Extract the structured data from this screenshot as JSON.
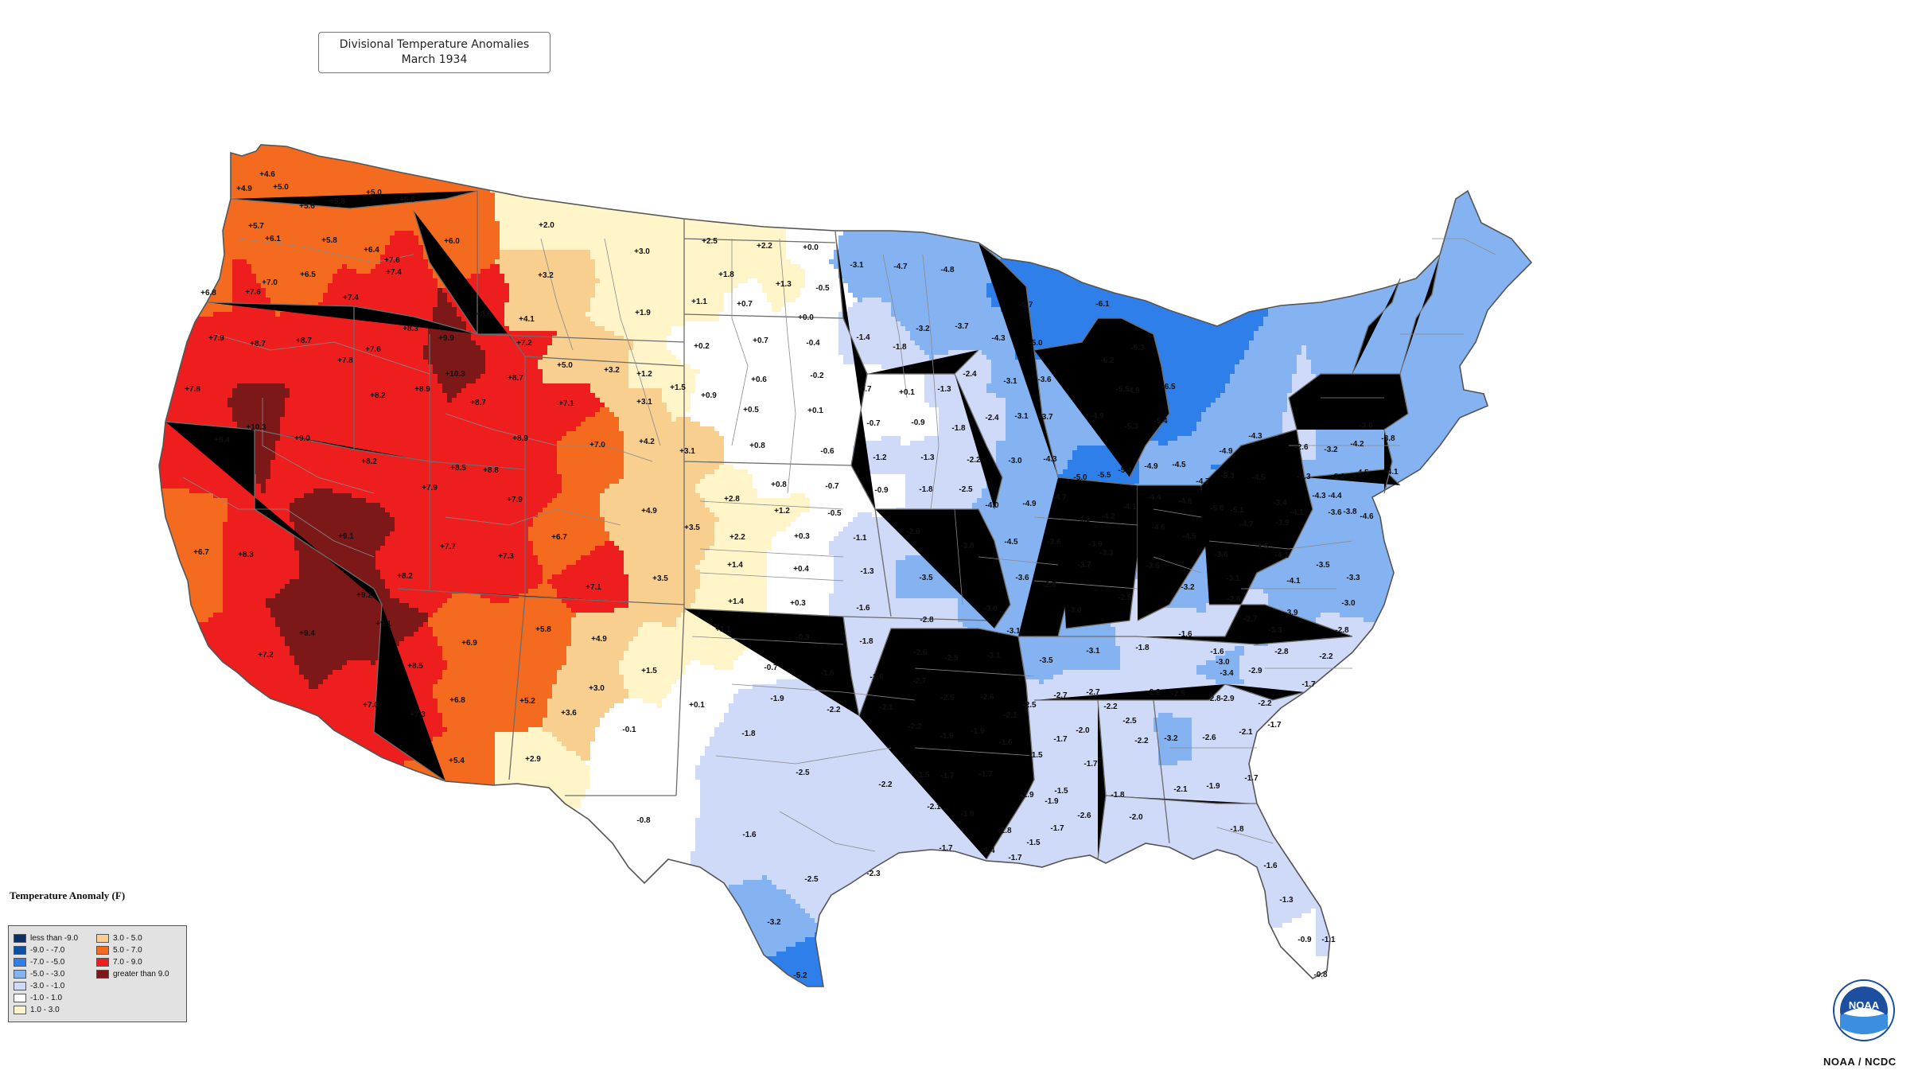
{
  "title": {
    "line1": "Divisional Temperature Anomalies",
    "line2": "March 1934"
  },
  "legend": {
    "title": "Temperature Anomaly (F)",
    "items": [
      {
        "label": "less than -9.0",
        "color": "#08306b"
      },
      {
        "label": "-9.0 - -7.0",
        "color": "#0d4fa3"
      },
      {
        "label": "-7.0 - -5.0",
        "color": "#2f7fea"
      },
      {
        "label": "-5.0 - -3.0",
        "color": "#85b3f2"
      },
      {
        "label": "-3.0 - -1.0",
        "color": "#cfd9f8"
      },
      {
        "label": "-1.0 - 1.0",
        "color": "#ffffff"
      },
      {
        "label": "1.0 - 3.0",
        "color": "#fff5c8"
      },
      {
        "label": "3.0 - 5.0",
        "color": "#f8cf8f"
      },
      {
        "label": "5.0 - 7.0",
        "color": "#f46a1e"
      },
      {
        "label": "7.0 - 9.0",
        "color": "#ee1e1e"
      },
      {
        "label": "greater than 9.0",
        "color": "#7d1818"
      }
    ]
  },
  "credit": "NOAA / NCDC",
  "logo_text": "NOAA",
  "anomalies": [
    [
      "+4.9",
      307,
      236,
      8
    ],
    [
      "+4.6",
      336,
      218,
      8
    ],
    [
      "+5.0",
      353,
      234,
      8
    ],
    [
      "+5.7",
      322,
      283,
      8
    ],
    [
      "+5.6",
      386,
      258,
      8
    ],
    [
      "+5.8",
      424,
      252,
      8
    ],
    [
      "+5.0",
      470,
      241,
      8
    ],
    [
      "+5.5",
      512,
      250,
      8
    ],
    [
      "+6.1",
      343,
      299,
      8
    ],
    [
      "+5.8",
      414,
      301,
      8
    ],
    [
      "+6.4",
      467,
      313,
      8
    ],
    [
      "+6.0",
      568,
      302,
      8
    ],
    [
      "+2.0",
      687,
      282,
      6
    ],
    [
      "+3.0",
      807,
      315,
      6
    ],
    [
      "+2.5",
      892,
      302,
      6
    ],
    [
      "+2.2",
      961,
      308,
      6
    ],
    [
      "+0.0",
      1019,
      310,
      5
    ],
    [
      "+7.6",
      493,
      326,
      9
    ],
    [
      "+7.4",
      495,
      341,
      9
    ],
    [
      "+6.5",
      387,
      344,
      8
    ],
    [
      "+7.0",
      339,
      354,
      8
    ],
    [
      "+7.6",
      318,
      366,
      9
    ],
    [
      "+6.8",
      262,
      367,
      8
    ],
    [
      "+7.4",
      441,
      373,
      9
    ],
    [
      "+3.2",
      686,
      345,
      7
    ],
    [
      "+1.8",
      913,
      344,
      6
    ],
    [
      "+1.3",
      985,
      356,
      6
    ],
    [
      "-0.5",
      1034,
      361,
      5
    ],
    [
      "-3.1",
      1077,
      332,
      3
    ],
    [
      "-4.7",
      1132,
      334,
      3
    ],
    [
      "-4.8",
      1191,
      338,
      3
    ],
    [
      "+1.1",
      879,
      378,
      6
    ],
    [
      "+0.7",
      936,
      381,
      5
    ],
    [
      "+1.9",
      808,
      392,
      6
    ],
    [
      "+4.1",
      662,
      400,
      7
    ],
    [
      "+8.6",
      608,
      394,
      9
    ],
    [
      "+0.0",
      1013,
      398,
      5
    ],
    [
      "+7.9",
      272,
      424,
      9
    ],
    [
      "+8.7",
      324,
      431,
      9
    ],
    [
      "+8.7",
      382,
      427,
      9
    ],
    [
      "+8.3",
      516,
      412,
      9
    ],
    [
      "+9.9",
      561,
      424,
      10
    ],
    [
      "+7.2",
      659,
      430,
      9
    ],
    [
      "+0.2",
      882,
      434,
      5
    ],
    [
      "+0.7",
      956,
      427,
      5
    ],
    [
      "-0.4",
      1022,
      430,
      5
    ],
    [
      "-1.4",
      1085,
      423,
      4
    ],
    [
      "-1.8",
      1131,
      435,
      4
    ],
    [
      "-3.2",
      1160,
      412,
      3
    ],
    [
      "-3.7",
      1209,
      409,
      3
    ],
    [
      "-4.3",
      1255,
      424,
      3
    ],
    [
      "-5.7",
      1290,
      382,
      2
    ],
    [
      "-6.1",
      1386,
      381,
      2
    ],
    [
      "-5.0",
      1302,
      430,
      2
    ],
    [
      "+7.8",
      434,
      452,
      9
    ],
    [
      "+7.6",
      469,
      438,
      9
    ],
    [
      "+10.3",
      572,
      469,
      10
    ],
    [
      "+8.7",
      648,
      474,
      9
    ],
    [
      "+5.0",
      710,
      458,
      7
    ],
    [
      "+3.2",
      769,
      464,
      7
    ],
    [
      "+1.2",
      810,
      469,
      6
    ],
    [
      "+0.6",
      954,
      476,
      5
    ],
    [
      "-0.2",
      1027,
      471,
      5
    ],
    [
      "-2.4",
      1219,
      469,
      4
    ],
    [
      "-3.1",
      1270,
      478,
      3
    ],
    [
      "-3.6",
      1313,
      476,
      3
    ],
    [
      "-6.2",
      1392,
      452,
      2
    ],
    [
      "-6.3",
      1430,
      436,
      2
    ],
    [
      "+7.8",
      242,
      488,
      9
    ],
    [
      "+8.2",
      475,
      496,
      9
    ],
    [
      "+8.9",
      531,
      488,
      9
    ],
    [
      "+8.7",
      601,
      505,
      9
    ],
    [
      "+7.1",
      712,
      506,
      9
    ],
    [
      "+3.1",
      810,
      504,
      7
    ],
    [
      "+1.5",
      852,
      486,
      6
    ],
    [
      "+0.9",
      891,
      496,
      5
    ],
    [
      "+0.5",
      944,
      514,
      5
    ],
    [
      "+0.1",
      1025,
      515,
      5
    ],
    [
      "-0.7",
      1087,
      488,
      5
    ],
    [
      "+0.1",
      1140,
      492,
      5
    ],
    [
      "-1.3",
      1187,
      488,
      4
    ],
    [
      "-4.9",
      1424,
      490,
      3
    ],
    [
      "-5.5",
      1411,
      488,
      2
    ],
    [
      "-6.5",
      1469,
      485,
      2
    ],
    [
      "+10.3",
      322,
      536,
      10
    ],
    [
      "+8.4",
      279,
      552,
      9
    ],
    [
      "+9.0",
      380,
      550,
      9
    ],
    [
      "+8.9",
      654,
      550,
      9
    ],
    [
      "+7.0",
      751,
      558,
      8
    ],
    [
      "+4.2",
      813,
      554,
      7
    ],
    [
      "+3.1",
      864,
      566,
      7
    ],
    [
      "+0.8",
      952,
      559,
      5
    ],
    [
      "-0.6",
      1040,
      566,
      5
    ],
    [
      "-0.7",
      1098,
      531,
      5
    ],
    [
      "-0.9",
      1154,
      530,
      5
    ],
    [
      "-1.8",
      1205,
      537,
      4
    ],
    [
      "-2.4",
      1247,
      524,
      4
    ],
    [
      "-3.1",
      1284,
      522,
      3
    ],
    [
      "-3.7",
      1315,
      523,
      3
    ],
    [
      "-4.9",
      1379,
      522,
      3
    ],
    [
      "-5.3",
      1422,
      535,
      2
    ],
    [
      "-5.4",
      1459,
      528,
      2
    ],
    [
      "+8.2",
      464,
      579,
      9
    ],
    [
      "+8.5",
      576,
      587,
      9
    ],
    [
      "+8.8",
      617,
      590,
      9
    ],
    [
      "-1.2",
      1106,
      574,
      4
    ],
    [
      "-1.3",
      1166,
      574,
      4
    ],
    [
      "-2.2",
      1224,
      577,
      4
    ],
    [
      "-3.0",
      1276,
      578,
      3
    ],
    [
      "-4.3",
      1320,
      576,
      3
    ],
    [
      "-5.0",
      1358,
      599,
      2
    ],
    [
      "-5.5",
      1388,
      596,
      2
    ],
    [
      "-5.4",
      1414,
      590,
      2
    ],
    [
      "-4.9",
      1447,
      585,
      3
    ],
    [
      "-4.5",
      1482,
      583,
      3
    ],
    [
      "-4.9",
      1541,
      566,
      3
    ],
    [
      "-5.3",
      1543,
      597,
      2
    ],
    [
      "-4.3",
      1578,
      547,
      3
    ],
    [
      "-2.6",
      1636,
      561,
      4
    ],
    [
      "-3.2",
      1673,
      564,
      3
    ],
    [
      "-4.2",
      1706,
      557,
      3
    ],
    [
      "-3.8",
      1745,
      550,
      3
    ],
    [
      "-3.0",
      1717,
      534,
      3
    ],
    [
      "+7.9",
      540,
      612,
      9
    ],
    [
      "+7.9",
      647,
      627,
      9
    ],
    [
      "+0.8",
      979,
      608,
      5
    ],
    [
      "-0.7",
      1046,
      610,
      5
    ],
    [
      "-0.9",
      1108,
      615,
      5
    ],
    [
      "-1.8",
      1164,
      614,
      4
    ],
    [
      "-2.5",
      1214,
      614,
      4
    ],
    [
      "-4.7",
      1332,
      624,
      3
    ],
    [
      "-4.1",
      1420,
      636,
      3
    ],
    [
      "-4.4",
      1451,
      624,
      3
    ],
    [
      "-4.6",
      1490,
      629,
      3
    ],
    [
      "-4.7",
      1512,
      604,
      3
    ],
    [
      "-5.0",
      1530,
      638,
      2
    ],
    [
      "-4.5",
      1582,
      599,
      3
    ],
    [
      "-3.3",
      1639,
      598,
      3
    ],
    [
      "-3.2",
      1682,
      598,
      3
    ],
    [
      "-4.5",
      1712,
      593,
      3
    ],
    [
      "-4.1",
      1749,
      592,
      3
    ],
    [
      "+4.9",
      816,
      641,
      7
    ],
    [
      "+2.8",
      920,
      626,
      6
    ],
    [
      "+1.2",
      983,
      641,
      6
    ],
    [
      "-0.5",
      1049,
      644,
      5
    ],
    [
      "-4.0",
      1247,
      634,
      3
    ],
    [
      "-4.9",
      1294,
      632,
      3
    ],
    [
      "-4.3",
      1362,
      652,
      3
    ],
    [
      "-4.2",
      1393,
      648,
      3
    ],
    [
      "-5.1",
      1555,
      640,
      2
    ],
    [
      "-3.4",
      1609,
      631,
      3
    ],
    [
      "-4.1",
      1630,
      643,
      3
    ],
    [
      "-4.3",
      1658,
      622,
      3
    ],
    [
      "-4.4",
      1678,
      622,
      3
    ],
    [
      "-3.6",
      1678,
      643,
      3
    ],
    [
      "-3.8",
      1697,
      642,
      3
    ],
    [
      "+9.1",
      435,
      673,
      10
    ],
    [
      "+8.3",
      309,
      696,
      9
    ],
    [
      "+6.7",
      253,
      693,
      8
    ],
    [
      "+7.7",
      563,
      686,
      9
    ],
    [
      "+7.3",
      636,
      698,
      9
    ],
    [
      "+6.7",
      703,
      674,
      8
    ],
    [
      "+3.5",
      870,
      662,
      7
    ],
    [
      "+2.2",
      927,
      674,
      6
    ],
    [
      "+0.3",
      1008,
      673,
      5
    ],
    [
      "-1.1",
      1081,
      675,
      4
    ],
    [
      "-2.6",
      1148,
      667,
      4
    ],
    [
      "-3.8",
      1216,
      685,
      3
    ],
    [
      "-4.5",
      1271,
      680,
      3
    ],
    [
      "-3.6",
      1325,
      680,
      3
    ],
    [
      "-3.9",
      1377,
      683,
      3
    ],
    [
      "-3.3",
      1391,
      694,
      3
    ],
    [
      "-4.6",
      1456,
      662,
      3
    ],
    [
      "-4.5",
      1495,
      673,
      3
    ],
    [
      "-4.7",
      1567,
      658,
      3
    ],
    [
      "-3.9",
      1612,
      656,
      3
    ],
    [
      "-3.5",
      1586,
      686,
      3
    ],
    [
      "-4.1",
      1611,
      697,
      3
    ],
    [
      "-4.6",
      1718,
      648,
      3
    ],
    [
      "+8.2",
      509,
      723,
      9
    ],
    [
      "+9.2",
      458,
      747,
      10
    ],
    [
      "+7.1",
      746,
      737,
      9
    ],
    [
      "+3.5",
      830,
      726,
      7
    ],
    [
      "+1.4",
      924,
      709,
      6
    ],
    [
      "+0.4",
      1007,
      714,
      5
    ],
    [
      "-1.3",
      1090,
      717,
      4
    ],
    [
      "-3.5",
      1164,
      725,
      3
    ],
    [
      "-3.6",
      1285,
      725,
      3
    ],
    [
      "-2.8",
      1319,
      734,
      4
    ],
    [
      "-3.7",
      1363,
      709,
      3
    ],
    [
      "-2.5",
      1414,
      750,
      4
    ],
    [
      "-3.6",
      1449,
      710,
      3
    ],
    [
      "-3.2",
      1493,
      737,
      3
    ],
    [
      "-3.8",
      1535,
      696,
      3
    ],
    [
      "-3.1",
      1550,
      726,
      3
    ],
    [
      "-4.1",
      1626,
      729,
      3
    ],
    [
      "-3.5",
      1663,
      709,
      3
    ],
    [
      "-3.3",
      1701,
      725,
      3
    ],
    [
      "+9.4",
      386,
      795,
      10
    ],
    [
      "+9.1",
      482,
      783,
      10
    ],
    [
      "+7.2",
      334,
      822,
      9
    ],
    [
      "+6.9",
      590,
      807,
      8
    ],
    [
      "+5.8",
      683,
      790,
      8
    ],
    [
      "+4.9",
      753,
      802,
      7
    ],
    [
      "+1.1",
      909,
      790,
      6
    ],
    [
      "+1.4",
      925,
      755,
      6
    ],
    [
      "+0.3",
      1003,
      757,
      5
    ],
    [
      "-0.3",
      1009,
      800,
      5
    ],
    [
      "-1.6",
      1085,
      763,
      4
    ],
    [
      "-1.8",
      1089,
      805,
      4
    ],
    [
      "-2.8",
      1165,
      778,
      4
    ],
    [
      "-3.0",
      1245,
      764,
      3
    ],
    [
      "-3.1",
      1274,
      792,
      3
    ],
    [
      "-3.0",
      1351,
      766,
      3
    ],
    [
      "-2.8",
      1551,
      752,
      4
    ],
    [
      "-2.7",
      1572,
      777,
      4
    ],
    [
      "-3.9",
      1623,
      769,
      3
    ],
    [
      "-3.0",
      1695,
      757,
      3
    ],
    [
      "-3.3",
      1603,
      791,
      3
    ],
    [
      "-2.8",
      1687,
      791,
      4
    ],
    [
      "+8.5",
      522,
      836,
      9
    ],
    [
      "+6.8",
      575,
      879,
      8
    ],
    [
      "+5.2",
      663,
      880,
      8
    ],
    [
      "+3.6",
      715,
      895,
      7
    ],
    [
      "+3.0",
      750,
      864,
      7
    ],
    [
      "+1.5",
      816,
      842,
      6
    ],
    [
      "-0.7",
      969,
      838,
      5
    ],
    [
      "-1.6",
      1040,
      845,
      4
    ],
    [
      "-1.6",
      1102,
      850,
      4
    ],
    [
      "-2.6",
      1157,
      819,
      4
    ],
    [
      "-2.5",
      1196,
      826,
      4
    ],
    [
      "-3.1",
      1249,
      823,
      3
    ],
    [
      "-3.5",
      1315,
      829,
      3
    ],
    [
      "-3.1",
      1374,
      817,
      3
    ],
    [
      "-1.8",
      1436,
      813,
      4
    ],
    [
      "-1.6",
      1490,
      796,
      4
    ],
    [
      "-1.6",
      1530,
      818,
      4
    ],
    [
      "-3.0",
      1537,
      831,
      3
    ],
    [
      "-3.4",
      1542,
      845,
      3
    ],
    [
      "-2.9",
      1578,
      842,
      4
    ],
    [
      "-2.8",
      1611,
      818,
      4
    ],
    [
      "-2.2",
      1667,
      824,
      4
    ],
    [
      "+7.0",
      466,
      885,
      9
    ],
    [
      "+7.3",
      525,
      897,
      9
    ],
    [
      "-0.1",
      791,
      916,
      5
    ],
    [
      "+0.1",
      876,
      885,
      5
    ],
    [
      "-1.9",
      977,
      877,
      4
    ],
    [
      "-2.2",
      1048,
      891,
      4
    ],
    [
      "-2.1",
      1114,
      888,
      4
    ],
    [
      "-2.7",
      1156,
      855,
      4
    ],
    [
      "-2.5",
      1191,
      876,
      4
    ],
    [
      "-2.6",
      1241,
      875,
      4
    ],
    [
      "-2.1",
      1270,
      898,
      4
    ],
    [
      "-2.5",
      1294,
      885,
      4
    ],
    [
      "-2.7",
      1333,
      873,
      4
    ],
    [
      "-2.7",
      1374,
      869,
      4
    ],
    [
      "-2.2",
      1396,
      887,
      4
    ],
    [
      "-2.5",
      1420,
      905,
      4
    ],
    [
      "-2.2",
      1450,
      869,
      4
    ],
    [
      "-2.5",
      1481,
      871,
      4
    ],
    [
      "-2.9",
      1543,
      877,
      4
    ],
    [
      "-2.8",
      1526,
      877,
      4
    ],
    [
      "-2.2",
      1590,
      883,
      4
    ],
    [
      "-1.7",
      1645,
      859,
      4
    ],
    [
      "+5.4",
      574,
      955,
      8
    ],
    [
      "+2.9",
      670,
      953,
      6
    ],
    [
      "-1.8",
      941,
      921,
      4
    ],
    [
      "-2.2",
      1150,
      912,
      4
    ],
    [
      "-1.9",
      1190,
      924,
      4
    ],
    [
      "-1.9",
      1229,
      918,
      4
    ],
    [
      "-1.6",
      1264,
      932,
      4
    ],
    [
      "-1.7",
      1333,
      928,
      4
    ],
    [
      "-2.0",
      1361,
      917,
      4
    ],
    [
      "-2.2",
      1435,
      930,
      4
    ],
    [
      "-3.2",
      1472,
      927,
      3
    ],
    [
      "-2.6",
      1520,
      926,
      4
    ],
    [
      "-2.1",
      1566,
      919,
      4
    ],
    [
      "-1.7",
      1602,
      910,
      4
    ],
    [
      "-2.5",
      1009,
      970,
      4
    ],
    [
      "-2.2",
      1113,
      985,
      4
    ],
    [
      "-1.5",
      1160,
      973,
      4
    ],
    [
      "-1.7",
      1191,
      974,
      4
    ],
    [
      "-1.7",
      1239,
      972,
      4
    ],
    [
      "-1.5",
      1302,
      948,
      4
    ],
    [
      "-1.7",
      1371,
      959,
      4
    ],
    [
      "-1.9",
      1291,
      998,
      4
    ],
    [
      "-1.9",
      1322,
      1006,
      4
    ],
    [
      "-1.5",
      1334,
      993,
      4
    ],
    [
      "-2.1",
      1484,
      991,
      4
    ],
    [
      "-1.9",
      1525,
      987,
      4
    ],
    [
      "-1.7",
      1573,
      977,
      4
    ],
    [
      "-0.8",
      809,
      1030,
      5
    ],
    [
      "-1.6",
      942,
      1048,
      4
    ],
    [
      "-2.1",
      1174,
      1013,
      4
    ],
    [
      "-1.9",
      1216,
      1022,
      4
    ],
    [
      "-2.6",
      1363,
      1024,
      4
    ],
    [
      "-2.0",
      1428,
      1026,
      4
    ],
    [
      "-1.8",
      1263,
      1043,
      4
    ],
    [
      "-1.7",
      1329,
      1040,
      4
    ],
    [
      "-1.8",
      1405,
      998,
      4
    ],
    [
      "-1.8",
      1555,
      1041,
      4
    ],
    [
      "-1.7",
      1189,
      1065,
      4
    ],
    [
      "-1.4",
      1242,
      1068,
      4
    ],
    [
      "-1.7",
      1276,
      1077,
      4
    ],
    [
      "-1.5",
      1299,
      1058,
      4
    ],
    [
      "-1.6",
      1597,
      1087,
      4
    ],
    [
      "-2.5",
      1020,
      1104,
      4
    ],
    [
      "-2.3",
      1098,
      1097,
      4
    ],
    [
      "-1.3",
      1617,
      1130,
      4
    ],
    [
      "-3.2",
      973,
      1158,
      3
    ],
    [
      "-0.9",
      1640,
      1180,
      5
    ],
    [
      "-1.1",
      1670,
      1180,
      4
    ],
    [
      "-5.2",
      1006,
      1225,
      2
    ],
    [
      "-0.8",
      1660,
      1224,
      5
    ]
  ]
}
